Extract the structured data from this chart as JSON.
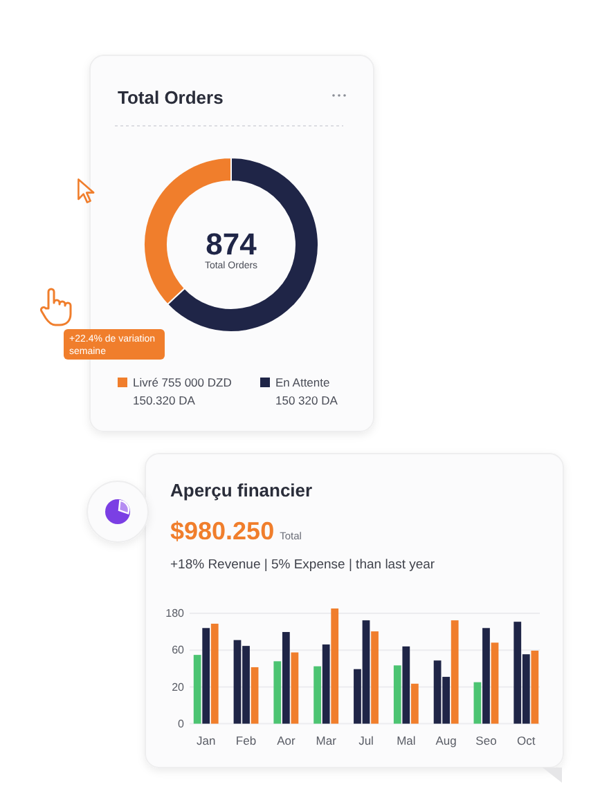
{
  "chart_data": [
    {
      "type": "donut",
      "title": "Total Orders",
      "categories": [
        "Livré 755 000 DZD",
        "En Attente"
      ],
      "values": [
        37,
        63
      ],
      "colors": [
        "#f07e2c",
        "#1f2547"
      ],
      "legend": "bottom",
      "annotations": [
        "874",
        "Total Orders",
        "+22.4% de variation semaine",
        "150.320 DA",
        "150 320 DA"
      ]
    },
    {
      "type": "bar",
      "title": "Aperçu financier",
      "subtitle": "+18% Revenue | 5% Expense | than last year",
      "annotations": [
        "$980.250",
        "Total"
      ],
      "categories": [
        "Jan",
        "Feb",
        "Aor",
        "Mar",
        "Jul",
        "Mal",
        "Aug",
        "Seo",
        "Oct"
      ],
      "series": [
        {
          "colors": [
            "#4cc472",
            "#1f2547",
            "#4cc472",
            "#4cc472",
            "#1f2547",
            "#4cc472",
            "#1f2547",
            "#4cc472",
            "#1f2547"
          ],
          "values": [
            52,
            81,
            43,
            37,
            34,
            38,
            44,
            23,
            140
          ]
        },
        {
          "color": "#1f2547",
          "values": [
            116,
            68,
            103,
            71,
            146,
            67,
            27,
            116,
            53
          ]
        },
        {
          "color": "#f07e2c",
          "values": [
            132,
            36,
            56,
            208,
            105,
            22,
            146,
            75,
            59
          ]
        }
      ],
      "log": true,
      "ylim": [
        0,
        215
      ],
      "yticks": [
        0,
        20,
        60,
        180
      ],
      "grid": "y"
    }
  ]
}
